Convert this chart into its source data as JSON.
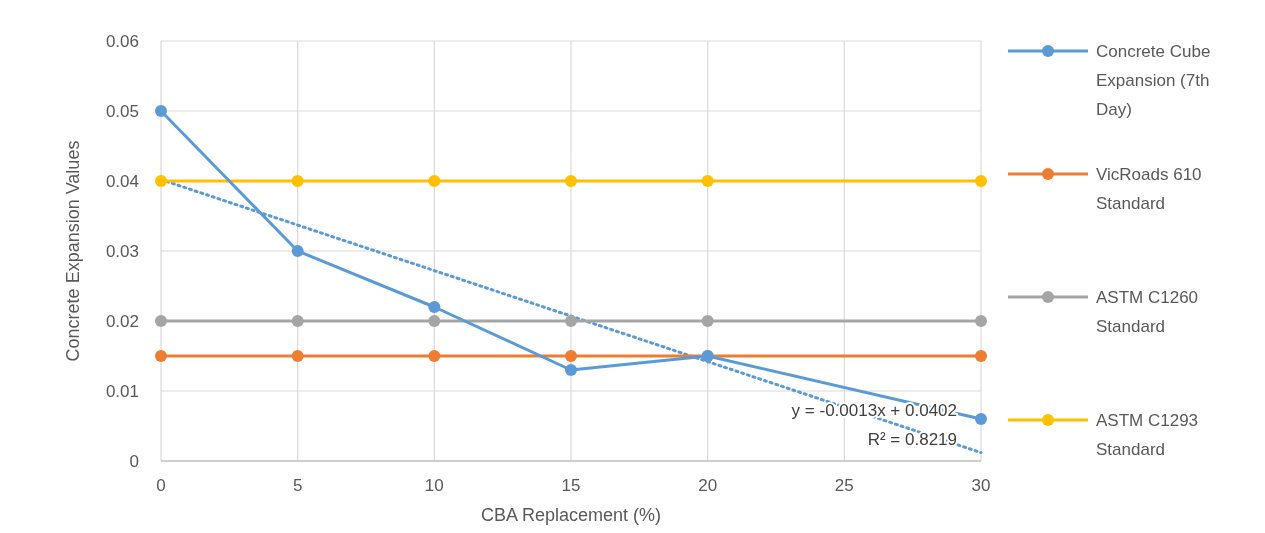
{
  "chart_data": {
    "type": "line",
    "xlabel": "CBA Replacement (%)",
    "ylabel": "Concrete Expansion Values",
    "x": [
      0,
      5,
      10,
      15,
      20,
      30
    ],
    "xlim": [
      0,
      30
    ],
    "xticks": [
      0,
      5,
      10,
      15,
      20,
      25,
      30
    ],
    "ylim": [
      0,
      0.06
    ],
    "yticks": [
      0,
      0.01,
      0.02,
      0.03,
      0.04,
      0.05,
      0.06
    ],
    "grid": true,
    "legend": "right",
    "marker": "circle",
    "line_style": "solid",
    "series": [
      {
        "name": "Concrete Cube Expansion (7th Day)",
        "color": "#5b9bd5",
        "values": [
          0.05,
          0.03,
          0.022,
          0.013,
          0.015,
          0.006
        ]
      },
      {
        "name": "VicRoads 610 Standard",
        "color": "#ed7d31",
        "values": [
          0.015,
          0.015,
          0.015,
          0.015,
          0.015,
          0.015
        ]
      },
      {
        "name": "ASTM C1260 Standard",
        "color": "#a5a5a5",
        "values": [
          0.02,
          0.02,
          0.02,
          0.02,
          0.02,
          0.02
        ]
      },
      {
        "name": "ASTM C1293 Standard",
        "color": "#ffc000",
        "values": [
          0.04,
          0.04,
          0.04,
          0.04,
          0.04,
          0.04
        ]
      },
      {
        "type": "line",
        "color": "#5b9bd5",
        "x": [
          0,
          30
        ],
        "values": [
          0.0402,
          0.0012
        ],
        "marker": "none",
        "line_style": "dotted"
      }
    ],
    "annotations": [
      "y = -0.0013x + 0.0402",
      "R² = 0.8219"
    ]
  }
}
